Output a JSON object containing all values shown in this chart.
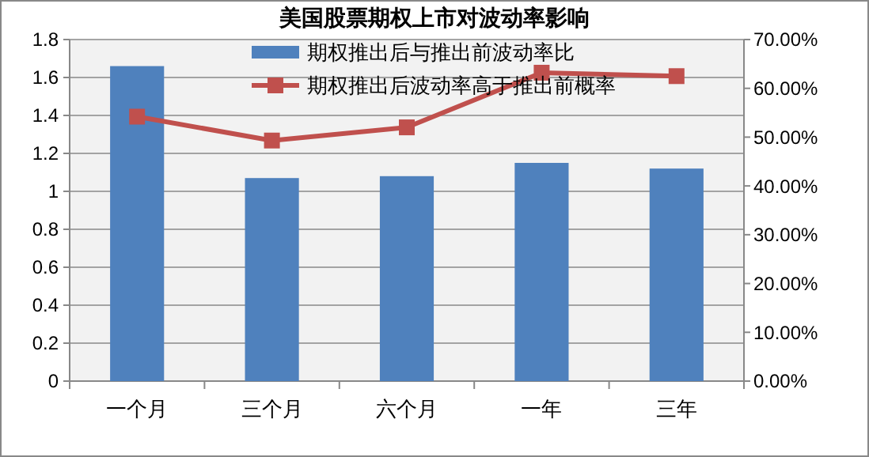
{
  "chart_data": {
    "type": "bar",
    "title": "美国股票期权上市对波动率影响",
    "categories": [
      "一个月",
      "三个月",
      "六个月",
      "一年",
      "三年"
    ],
    "series": [
      {
        "name": "期权推出后与推出前波动率比",
        "color": "#4f81bd",
        "values": [
          1.66,
          1.07,
          1.08,
          1.15,
          1.12
        ]
      },
      {
        "name": "期权推出后波动率高于推出前概率",
        "type": "line",
        "axis": "y2",
        "color": "#c0504d",
        "marker": "square",
        "values": [
          54.2,
          49.3,
          52.0,
          63.2,
          62.5
        ]
      }
    ],
    "ylim": [
      0,
      1.8
    ],
    "yticks": [
      0,
      0.2,
      0.4,
      0.6,
      0.8,
      1,
      1.2,
      1.4,
      1.6,
      1.8
    ],
    "y2lim": [
      0,
      70
    ],
    "y2ticks": [
      {
        "value": 0,
        "label": "0.00%"
      },
      {
        "value": 10,
        "label": "10.00%"
      },
      {
        "value": 20,
        "label": "20.00%"
      },
      {
        "value": 30,
        "label": "30.00%"
      },
      {
        "value": 40,
        "label": "40.00%"
      },
      {
        "value": 50,
        "label": "50.00%"
      },
      {
        "value": 60,
        "label": "60.00%"
      },
      {
        "value": 70,
        "label": "70.00%"
      }
    ],
    "grid": "y",
    "legend": "top"
  }
}
